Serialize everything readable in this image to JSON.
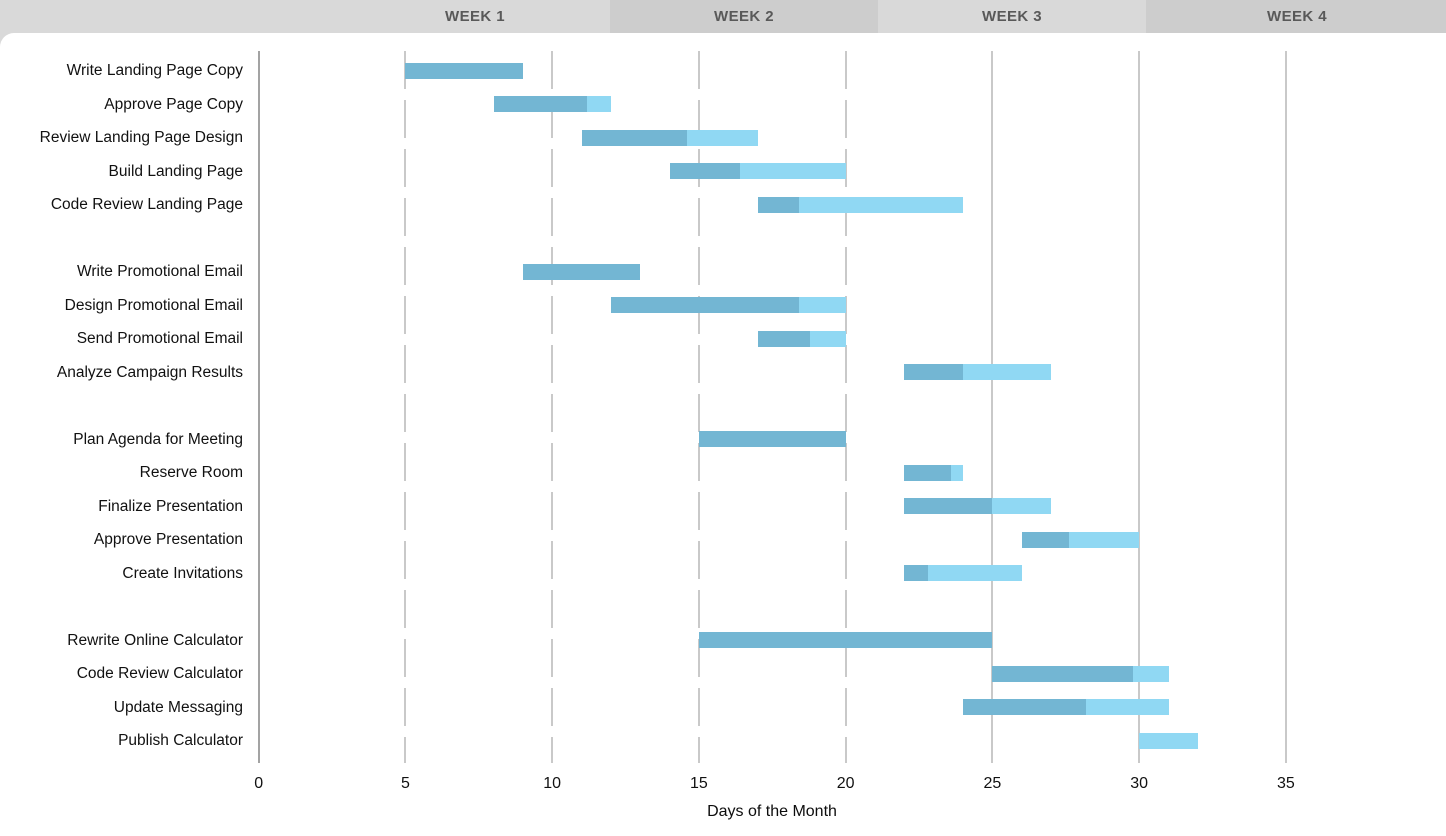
{
  "header": {
    "weeks": [
      "WEEK 1",
      "WEEK 2",
      "WEEK 3",
      "WEEK 4"
    ]
  },
  "chart_data": {
    "type": "bar",
    "subtype": "gantt",
    "title": "",
    "xlabel": "Days of the Month",
    "ylabel": "",
    "x_ticks": [
      0,
      5,
      10,
      15,
      20,
      25,
      30,
      35
    ],
    "xlim": [
      0,
      40
    ],
    "grid": "vertical only; days 5-20 dashed, day 0 solid dark, days 25-35 solid light",
    "legend": "none",
    "bar_encoding": "darker left segment = percent complete, lighter right segment = remaining",
    "tasks": [
      {
        "label": "Write Landing Page Copy",
        "group": 1,
        "start_day": 5,
        "end_day": 9,
        "percent_complete": 100
      },
      {
        "label": "Approve Page Copy",
        "group": 1,
        "start_day": 8,
        "end_day": 12,
        "percent_complete": 80
      },
      {
        "label": "Review Landing Page Design",
        "group": 1,
        "start_day": 11,
        "end_day": 17,
        "percent_complete": 60
      },
      {
        "label": "Build Landing Page",
        "group": 1,
        "start_day": 14,
        "end_day": 20,
        "percent_complete": 40
      },
      {
        "label": "Code Review Landing Page",
        "group": 1,
        "start_day": 17,
        "end_day": 24,
        "percent_complete": 20
      },
      {
        "label": "Write Promotional Email",
        "group": 2,
        "start_day": 9,
        "end_day": 13,
        "percent_complete": 100
      },
      {
        "label": "Design Promotional Email",
        "group": 2,
        "start_day": 12,
        "end_day": 20,
        "percent_complete": 80
      },
      {
        "label": "Send Promotional Email",
        "group": 2,
        "start_day": 17,
        "end_day": 20,
        "percent_complete": 60
      },
      {
        "label": "Analyze Campaign Results",
        "group": 2,
        "start_day": 22,
        "end_day": 27,
        "percent_complete": 40
      },
      {
        "label": "Plan Agenda for Meeting",
        "group": 3,
        "start_day": 15,
        "end_day": 20,
        "percent_complete": 100
      },
      {
        "label": "Reserve Room",
        "group": 3,
        "start_day": 22,
        "end_day": 24,
        "percent_complete": 80
      },
      {
        "label": "Finalize Presentation",
        "group": 3,
        "start_day": 22,
        "end_day": 27,
        "percent_complete": 60
      },
      {
        "label": "Approve Presentation",
        "group": 3,
        "start_day": 26,
        "end_day": 30,
        "percent_complete": 40
      },
      {
        "label": "Create Invitations",
        "group": 3,
        "start_day": 22,
        "end_day": 26,
        "percent_complete": 20
      },
      {
        "label": "Rewrite Online Calculator",
        "group": 4,
        "start_day": 15,
        "end_day": 25,
        "percent_complete": 100
      },
      {
        "label": "Code Review Calculator",
        "group": 4,
        "start_day": 25,
        "end_day": 31,
        "percent_complete": 80
      },
      {
        "label": "Update Messaging",
        "group": 4,
        "start_day": 24,
        "end_day": 31,
        "percent_complete": 60
      },
      {
        "label": "Publish Calculator",
        "group": 4,
        "start_day": 30,
        "end_day": 32,
        "percent_complete": 0
      }
    ]
  },
  "colors": {
    "header_band_light": "#d9d9d9",
    "header_band_dark": "#cdcdcd",
    "header_text": "#595959",
    "grid_axis_dark": "#a3a3a3",
    "grid_line_light": "#c9c9c9",
    "bar_complete": "#73b6d3",
    "bar_remaining": "#90d8f3",
    "text": "#111111"
  }
}
